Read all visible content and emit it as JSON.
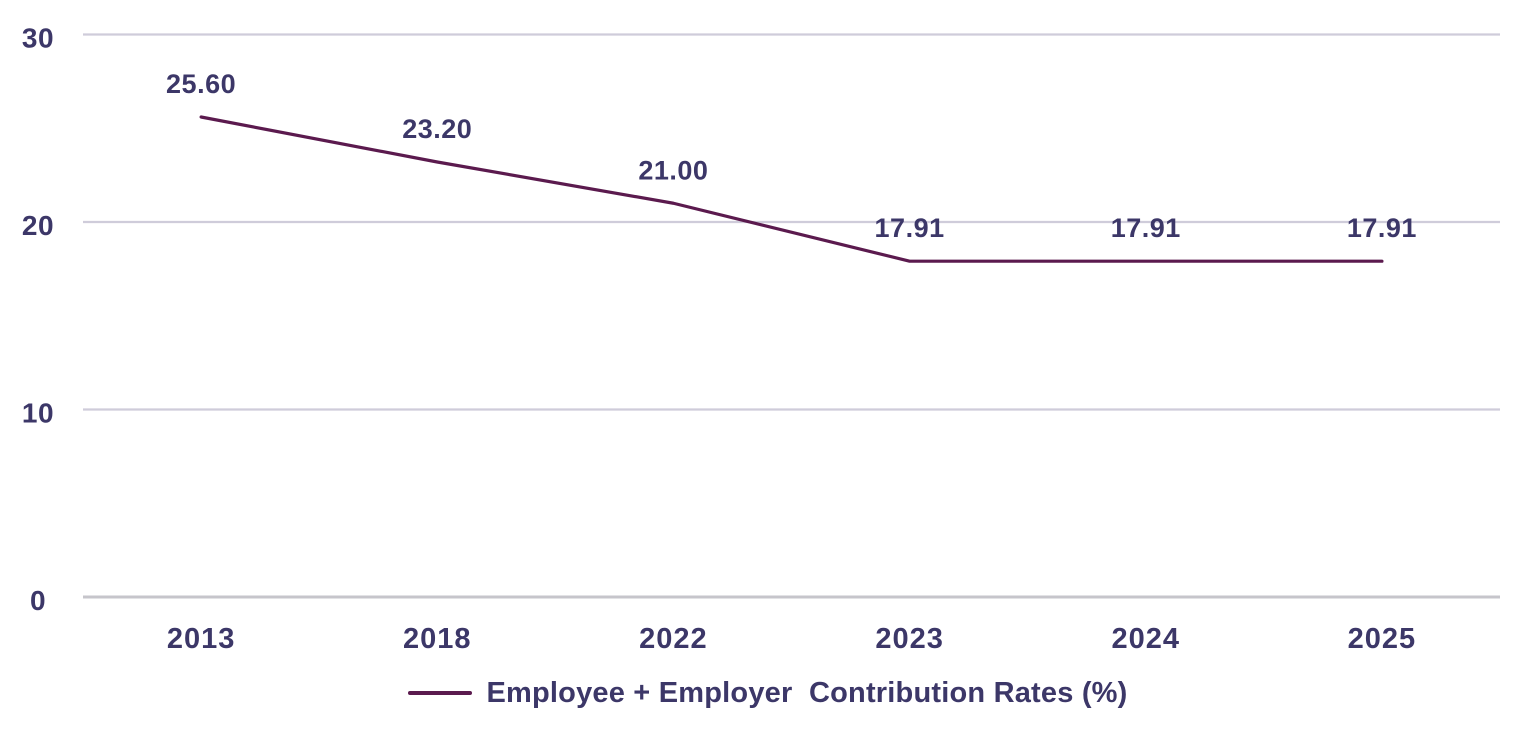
{
  "chart_data": {
    "type": "line",
    "categories": [
      "2013",
      "2018",
      "2022",
      "2023",
      "2024",
      "2025"
    ],
    "series": [
      {
        "name": "Employee + Employer  Contribution Rates (%)",
        "values": [
          25.6,
          23.2,
          21.0,
          17.91,
          17.91,
          17.91
        ],
        "point_labels": [
          "25.60",
          "23.20",
          "21.00",
          "17.91",
          "17.91",
          "17.91"
        ],
        "color": "#5b1a4e"
      }
    ],
    "title": "",
    "xlabel": "",
    "ylabel": "",
    "ylim": [
      0,
      30
    ],
    "yticks": [
      0,
      10,
      20,
      30
    ],
    "grid": true,
    "legend_position": "bottom",
    "legend": "Employee + Employer  Contribution Rates (%)"
  },
  "colors": {
    "line": "#5b1a4e",
    "text": "#3c3768",
    "gridline": "#cfccda",
    "axis_line": "#c6c5cb",
    "background": "#ffffff"
  }
}
